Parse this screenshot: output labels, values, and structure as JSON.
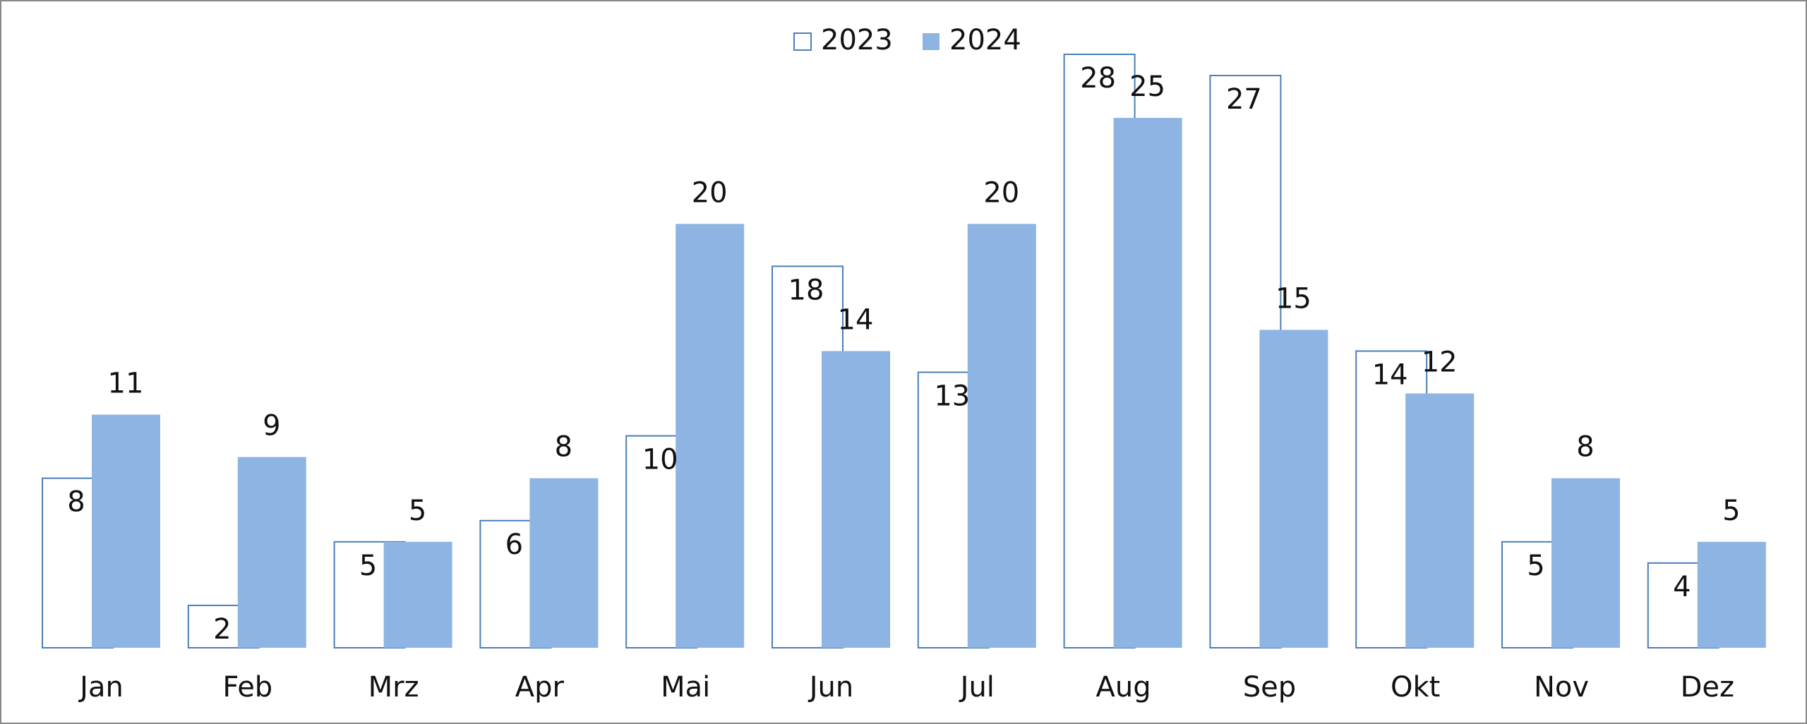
{
  "chart_data": {
    "type": "bar",
    "categories": [
      "Jan",
      "Feb",
      "Mrz",
      "Apr",
      "Mai",
      "Jun",
      "Jul",
      "Aug",
      "Sep",
      "Okt",
      "Nov",
      "Dez"
    ],
    "series": [
      {
        "name": "2023",
        "color": "#4a7fb8",
        "values": [
          8,
          2,
          5,
          6,
          10,
          18,
          13,
          28,
          27,
          14,
          5,
          4
        ]
      },
      {
        "name": "2024",
        "color": "#8eb4e3",
        "values": [
          11,
          9,
          5,
          8,
          20,
          14,
          20,
          25,
          15,
          12,
          8,
          5
        ]
      }
    ]
  }
}
